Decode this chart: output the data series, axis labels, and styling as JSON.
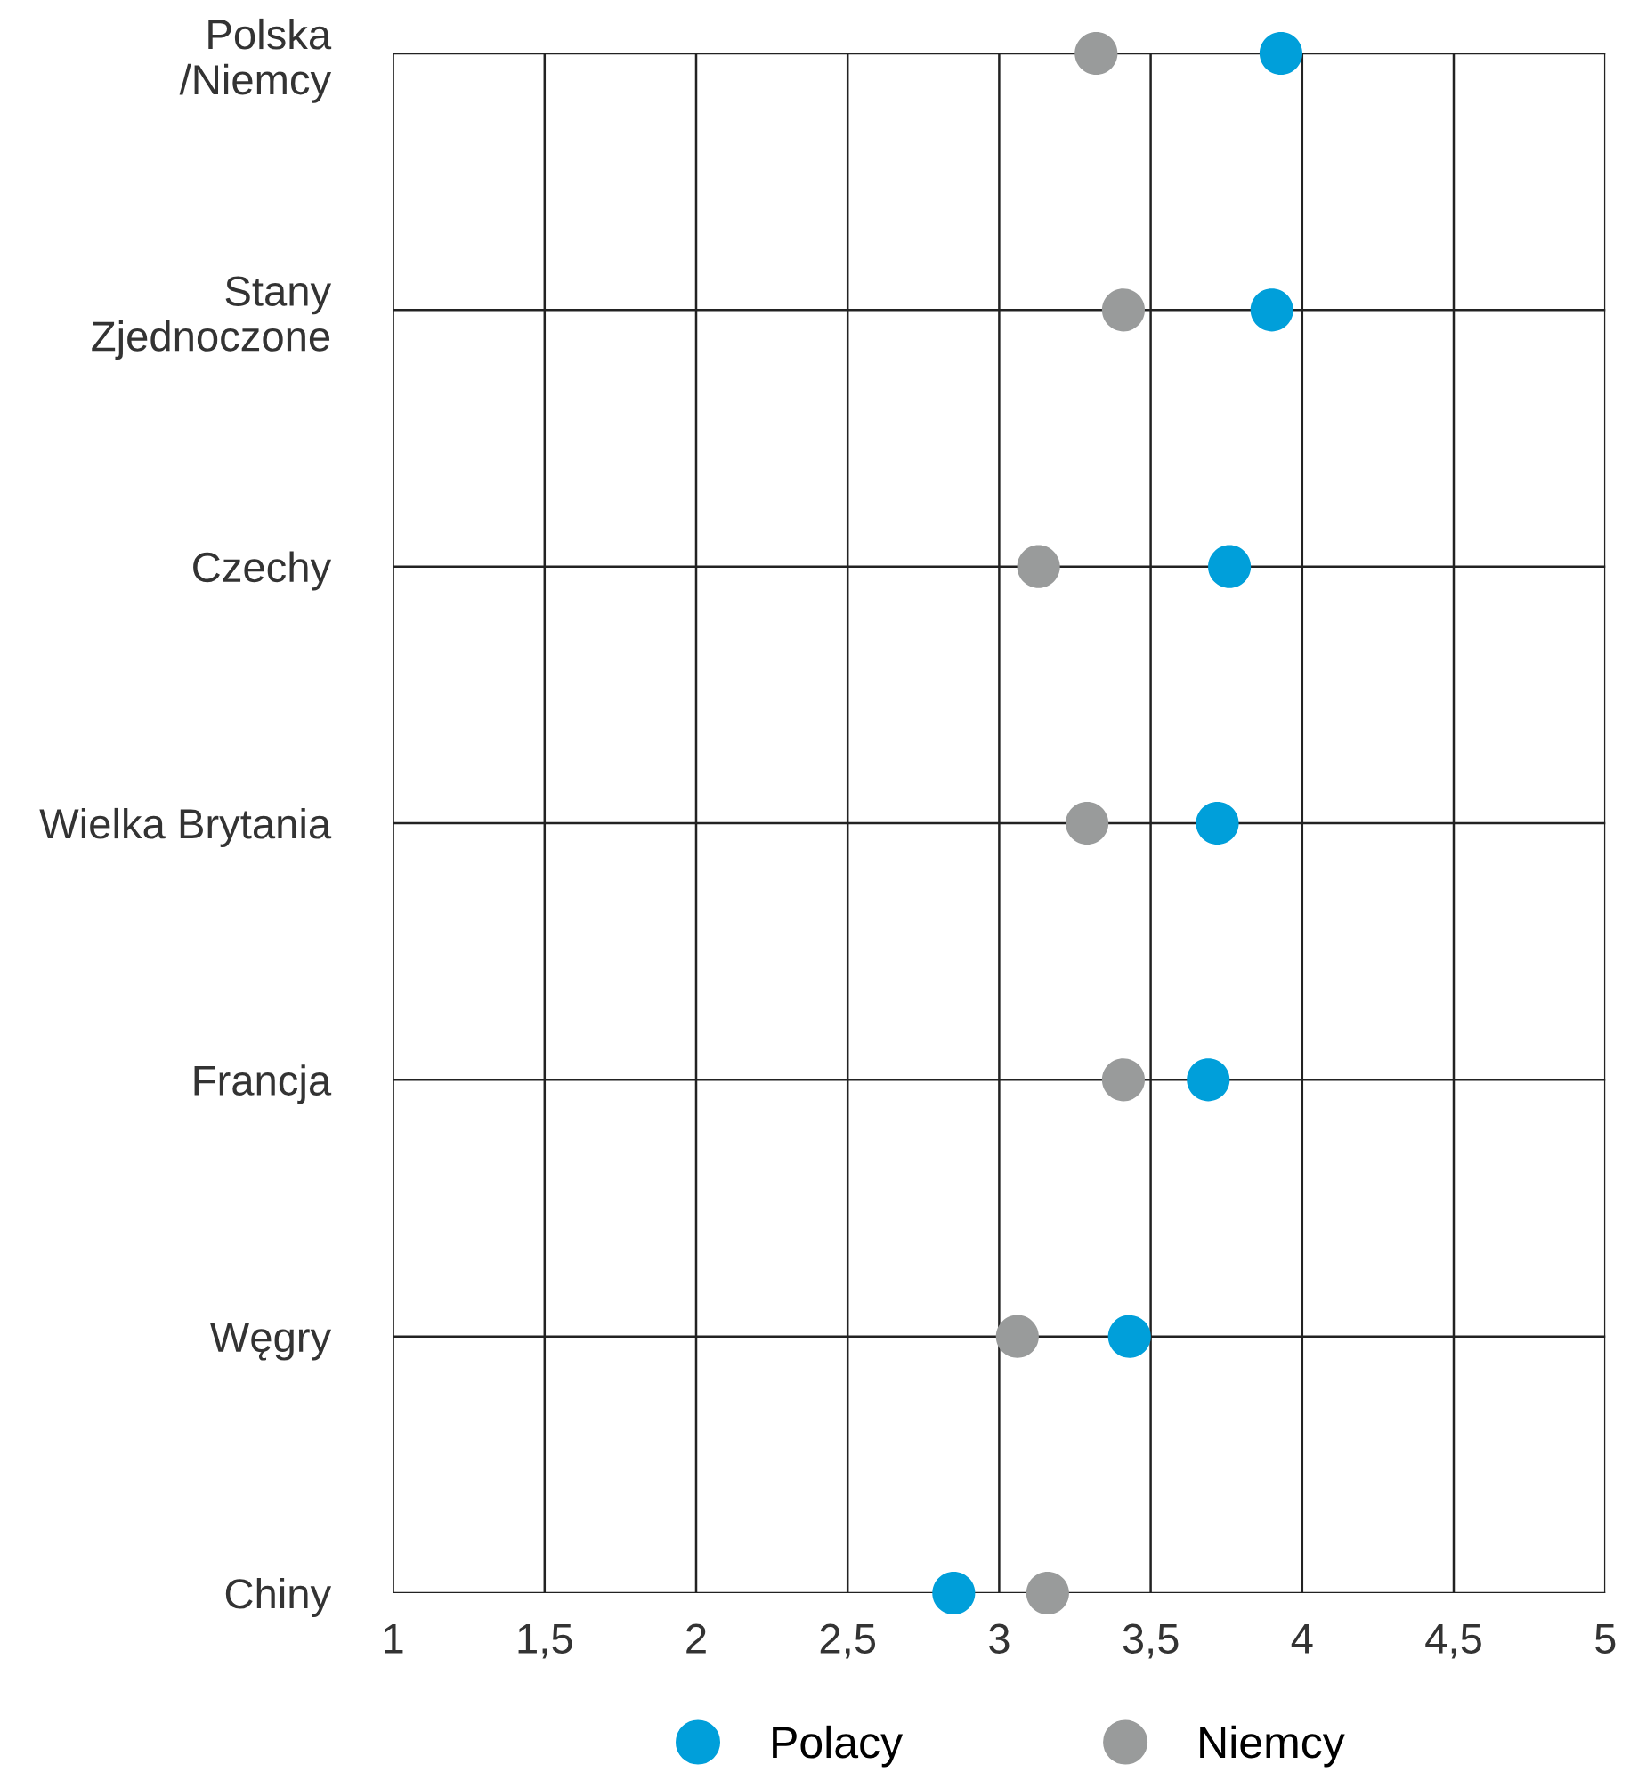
{
  "chart_data": {
    "type": "scatter",
    "orientation": "horizontal",
    "categories": [
      "Polska\n/Niemcy",
      "Stany\nZjednoczone",
      "Czechy",
      "Wielka Brytania",
      "Francja",
      "Węgry",
      "Chiny"
    ],
    "series": [
      {
        "name": "Polacy",
        "color": "#009fda",
        "values": [
          3.93,
          3.9,
          3.76,
          3.72,
          3.69,
          3.43,
          2.85
        ]
      },
      {
        "name": "Niemcy",
        "color": "#999b9b",
        "values": [
          3.32,
          3.41,
          3.13,
          3.29,
          3.41,
          3.06,
          3.16
        ]
      }
    ],
    "xlim": [
      1,
      5
    ],
    "xticks": [
      1,
      {
        "value": 1.5,
        "label": "1,5"
      },
      2,
      {
        "value": 2.5,
        "label": "2,5"
      },
      3,
      {
        "value": 3.5,
        "label": "3,5"
      },
      4,
      {
        "value": 4.5,
        "label": "4,5"
      },
      5
    ],
    "grid": true,
    "legend": "bottom",
    "marker": "circle"
  }
}
